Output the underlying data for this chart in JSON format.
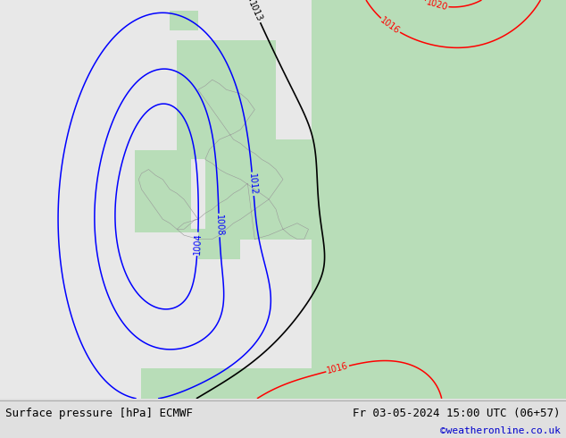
{
  "title_left": "Surface pressure [hPa] ECMWF",
  "title_right": "Fr 03-05-2024 15:00 UTC (06+57)",
  "credit": "©weatheronline.co.uk",
  "bg_ocean": "#e8e8e8",
  "bg_land": "#b8ddb8",
  "footer_bg": "#e0e0e0",
  "footer_text_color": "#000000",
  "credit_color": "#0000cc",
  "font_size_footer": 9,
  "contour_blue_color": "#0000ff",
  "contour_black_color": "#000000",
  "contour_red_color": "#ff0000",
  "label_fontsize": 7,
  "lon_min": -20,
  "lon_max": 20,
  "lat_min": 43,
  "lat_max": 63
}
